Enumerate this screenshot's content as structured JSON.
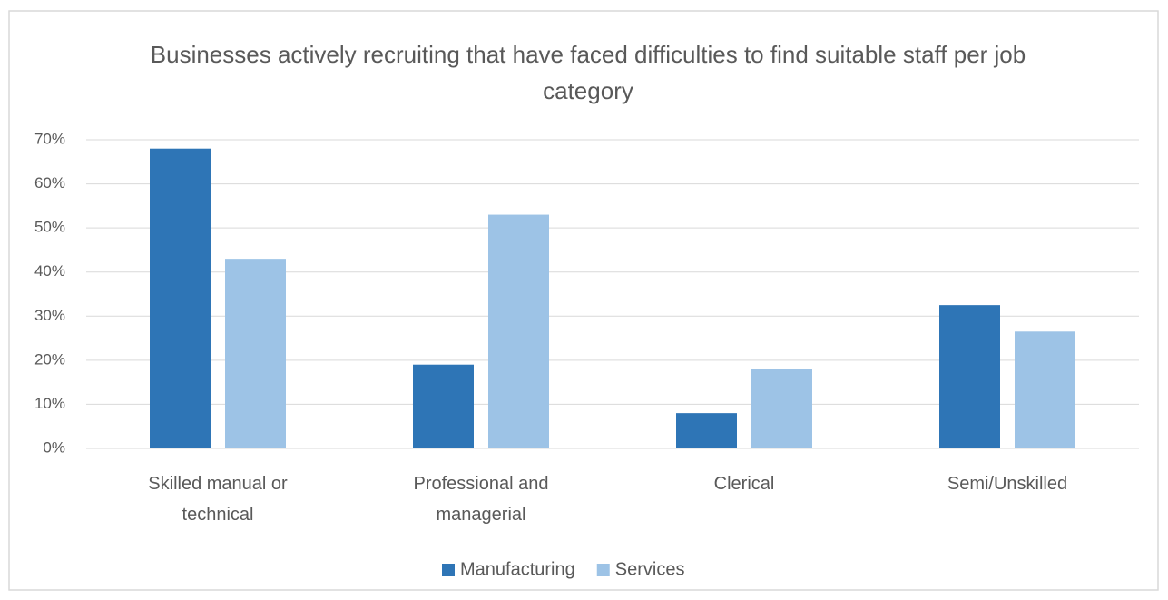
{
  "chart_data": {
    "type": "bar",
    "title": "Businesses actively recruiting that have faced difficulties to find suitable staff per job category",
    "categories": [
      "Skilled manual or technical",
      "Professional and managerial",
      "Clerical",
      "Semi/Unskilled"
    ],
    "series": [
      {
        "name": "Manufacturing",
        "color": "#2e75b6",
        "values": [
          68,
          19,
          8,
          32.5
        ]
      },
      {
        "name": "Services",
        "color": "#9dc3e6",
        "values": [
          43,
          53,
          18,
          26.5
        ]
      }
    ],
    "ylim": [
      0,
      70
    ],
    "yticks": [
      {
        "value": 0,
        "label": "0%"
      },
      {
        "value": 10,
        "label": "10%"
      },
      {
        "value": 20,
        "label": "20%"
      },
      {
        "value": 30,
        "label": "30%"
      },
      {
        "value": 40,
        "label": "40%"
      },
      {
        "value": 50,
        "label": "50%"
      },
      {
        "value": 60,
        "label": "60%"
      },
      {
        "value": 70,
        "label": "70%"
      }
    ],
    "grid": true,
    "legend": "bottom"
  }
}
